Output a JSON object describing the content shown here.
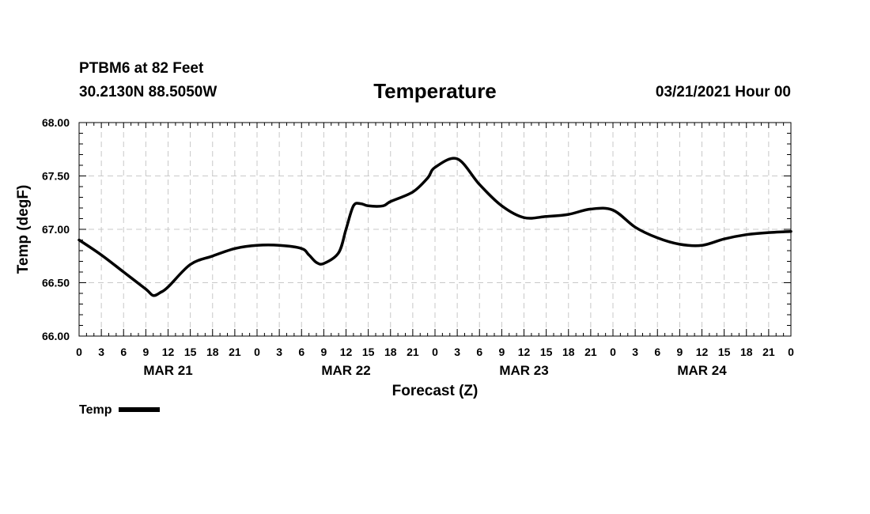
{
  "header": {
    "station": "PTBM6 at 82 Feet",
    "coords": "30.2130N 88.5050W",
    "title": "Temperature",
    "datetime": "03/21/2021 Hour 00"
  },
  "legend": {
    "label": "Temp"
  },
  "chart_data": {
    "type": "line",
    "title": "Temperature",
    "xlabel": "Forecast (Z)",
    "ylabel": "Temp (degF)",
    "ylim": [
      66.0,
      68.0
    ],
    "xlim": [
      0,
      96
    ],
    "grid": true,
    "legend_position": "bottom-left",
    "y_ticks": [
      "66.00",
      "66.50",
      "67.00",
      "67.50",
      "68.00"
    ],
    "x_tick_labels": [
      "0",
      "3",
      "6",
      "9",
      "12",
      "15",
      "18",
      "21",
      "0",
      "3",
      "6",
      "9",
      "12",
      "15",
      "18",
      "21",
      "0",
      "3",
      "6",
      "9",
      "12",
      "15",
      "18",
      "21",
      "0",
      "3",
      "6",
      "9",
      "12",
      "15",
      "18",
      "21",
      "0"
    ],
    "day_labels": [
      "MAR 21",
      "MAR 22",
      "MAR 23",
      "MAR 24"
    ],
    "series": [
      {
        "name": "Temp",
        "color": "#000000",
        "x": [
          0,
          3,
          6,
          9,
          10,
          11,
          12,
          15,
          18,
          21,
          24,
          27,
          30,
          31,
          32,
          33,
          35,
          36,
          37,
          38,
          39,
          41,
          42,
          45,
          47,
          48,
          51,
          54,
          57,
          60,
          63,
          66,
          69,
          72,
          75,
          78,
          81,
          84,
          87,
          90,
          93,
          96
        ],
        "y": [
          66.9,
          66.76,
          66.6,
          66.44,
          66.38,
          66.41,
          66.46,
          66.67,
          66.75,
          66.82,
          66.85,
          66.85,
          66.82,
          66.76,
          66.69,
          66.68,
          66.78,
          67.0,
          67.22,
          67.24,
          67.22,
          67.22,
          67.26,
          67.35,
          67.48,
          67.58,
          67.66,
          67.42,
          67.22,
          67.11,
          67.12,
          67.14,
          67.19,
          67.18,
          67.02,
          66.92,
          66.86,
          66.85,
          66.91,
          66.95,
          66.97,
          66.98
        ]
      }
    ]
  }
}
